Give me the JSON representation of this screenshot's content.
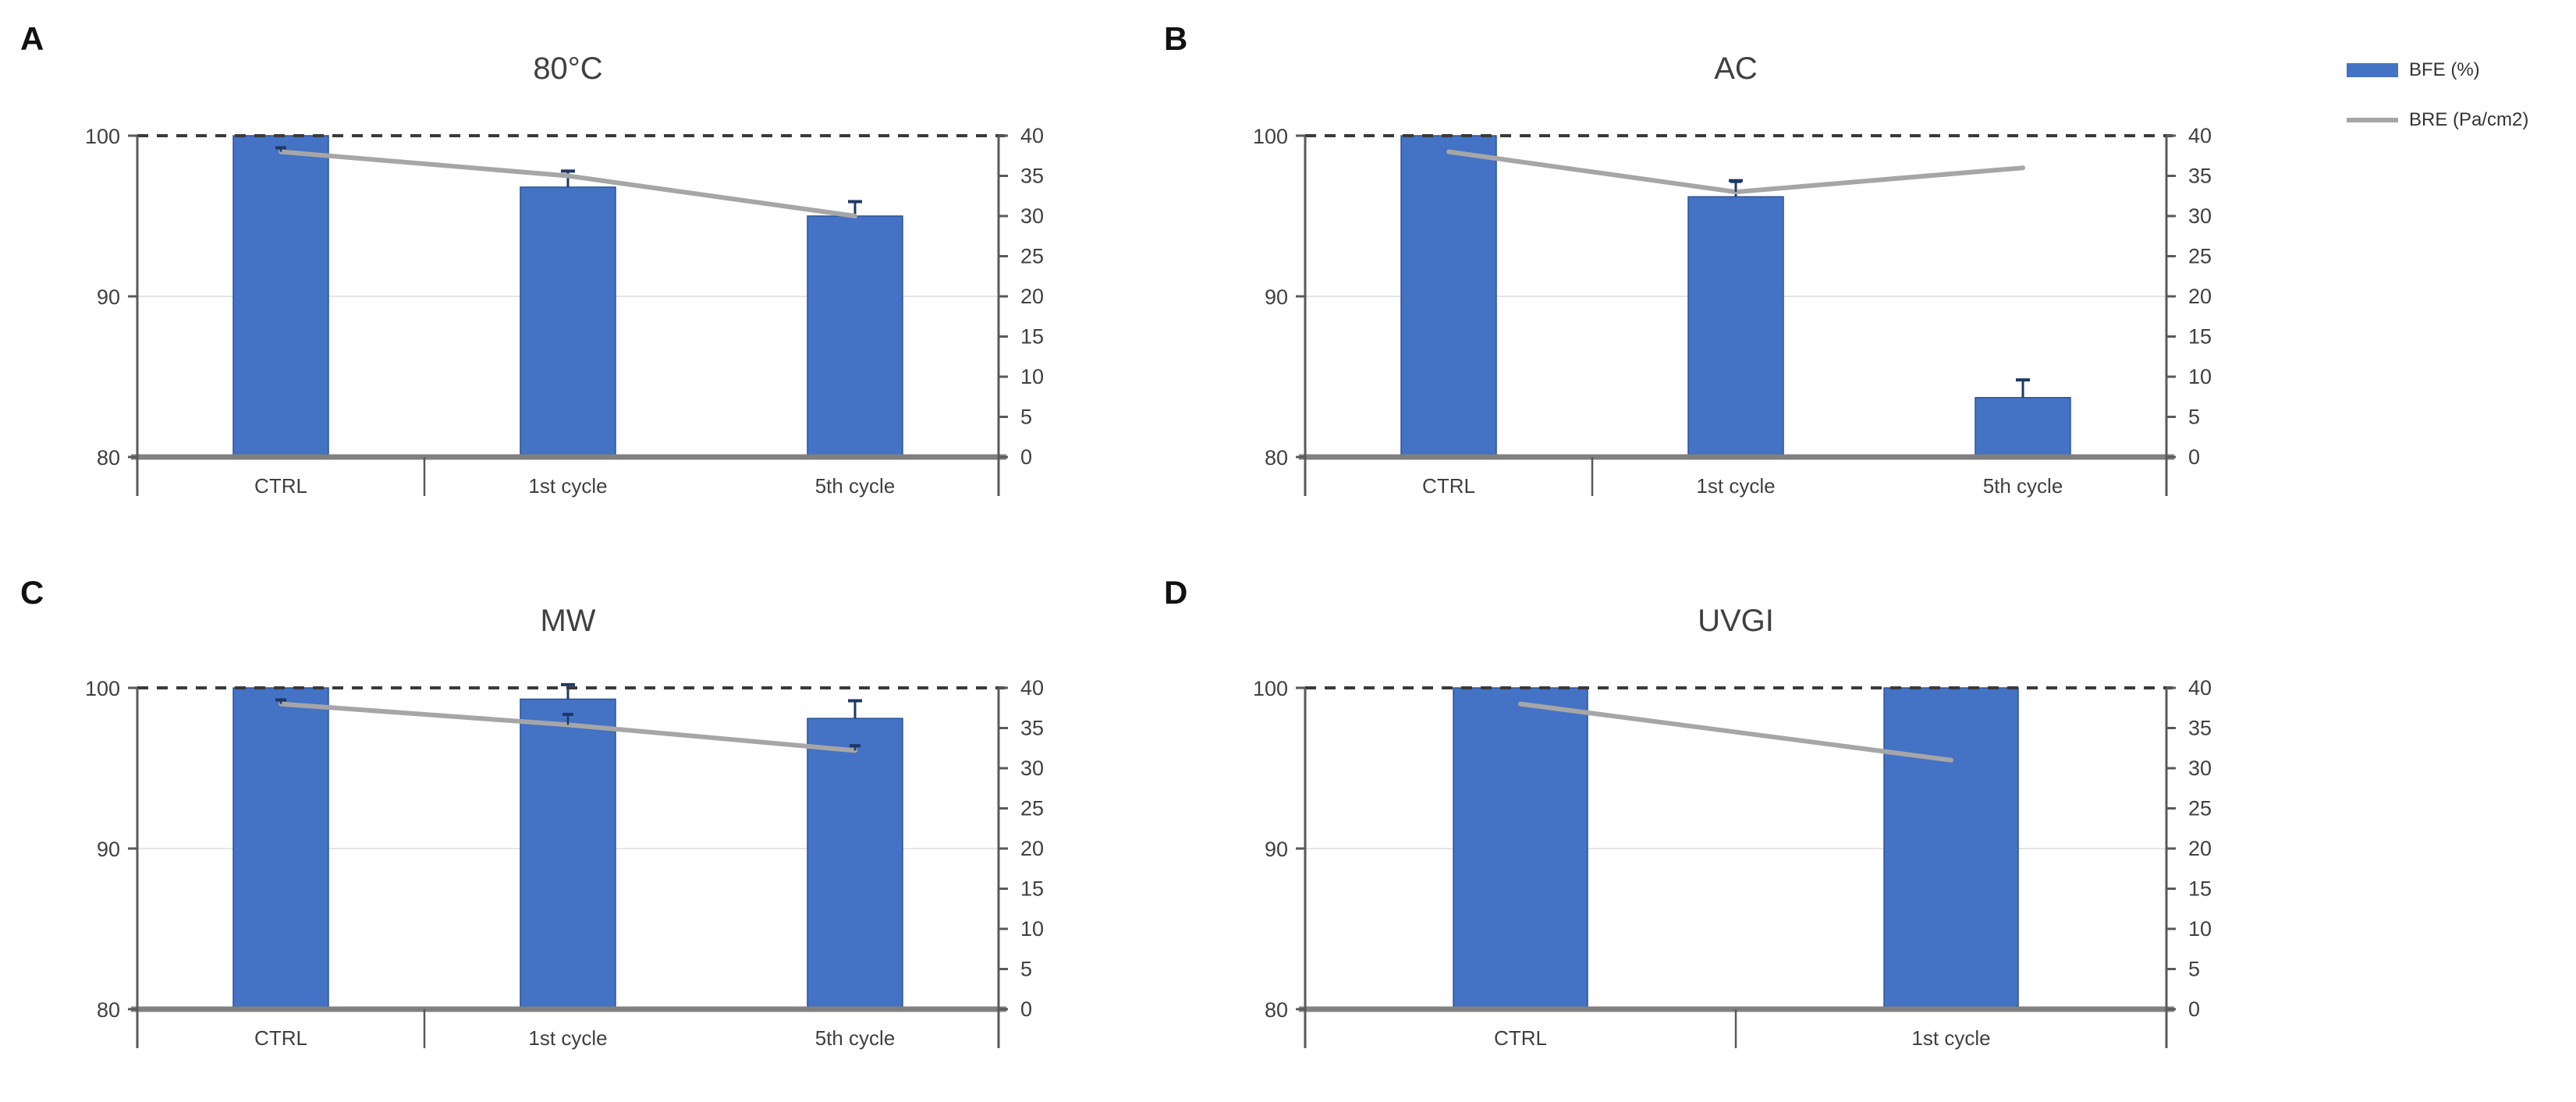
{
  "figure": {
    "colors": {
      "bar_fill": "#4472C4",
      "bar_stroke": "#2B5597",
      "line": "#A6A6A6",
      "error_bar": "#1F3864",
      "dashed_cap_line": "#3A3A3A",
      "baseline": "#808080",
      "gridline": "#E4E4E4",
      "axis": "#595959",
      "label_text": "#404040"
    },
    "legend": {
      "items": [
        {
          "swatch": "bar",
          "label": "BFE (%)"
        },
        {
          "swatch": "line",
          "label": "BRE (Pa/cm2)"
        }
      ]
    }
  },
  "chart_data": [
    {
      "type": "bar+line",
      "panel_label": "A",
      "title": "80°C",
      "categories": [
        "CTRL",
        "1st cycle",
        "5th cycle"
      ],
      "series": [
        {
          "name": "BFE (%)",
          "kind": "bar",
          "axis": "left",
          "values": [
            100,
            96.8,
            95.0
          ],
          "errors": [
            0,
            1.0,
            0.9
          ]
        },
        {
          "name": "BRE (Pa/cm2)",
          "kind": "line",
          "axis": "right",
          "values": [
            38,
            35,
            30
          ],
          "errors": [
            0.5,
            0,
            0
          ]
        }
      ],
      "left_axis": {
        "label_values": [
          100,
          90,
          80
        ],
        "ylim": [
          80,
          100
        ]
      },
      "right_axis": {
        "label_values": [
          40,
          35,
          30,
          25,
          20,
          15,
          10,
          5,
          0
        ],
        "ylim": [
          0,
          40
        ]
      },
      "reference_line_left": 100,
      "gridline_left": 90
    },
    {
      "type": "bar+line",
      "panel_label": "B",
      "title": "AC",
      "categories": [
        "CTRL",
        "1st cycle",
        "5th cycle"
      ],
      "series": [
        {
          "name": "BFE (%)",
          "kind": "bar",
          "axis": "left",
          "values": [
            100,
            96.2,
            83.7
          ],
          "errors": [
            0,
            1.0,
            1.1
          ]
        },
        {
          "name": "BRE (Pa/cm2)",
          "kind": "line",
          "axis": "right",
          "values": [
            38,
            33,
            36
          ],
          "errors": [
            0,
            1.3,
            0
          ]
        }
      ],
      "left_axis": {
        "label_values": [
          100,
          90,
          80
        ],
        "ylim": [
          80,
          100
        ]
      },
      "right_axis": {
        "label_values": [
          40,
          35,
          30,
          25,
          20,
          15,
          10,
          5,
          0
        ],
        "ylim": [
          0,
          40
        ]
      },
      "reference_line_left": 100,
      "gridline_left": 90
    },
    {
      "type": "bar+line",
      "panel_label": "C",
      "title": "MW",
      "categories": [
        "CTRL",
        "1st cycle",
        "5th cycle"
      ],
      "series": [
        {
          "name": "BFE (%)",
          "kind": "bar",
          "axis": "left",
          "values": [
            100,
            99.3,
            98.1
          ],
          "errors": [
            0,
            0.9,
            1.1
          ]
        },
        {
          "name": "BRE (Pa/cm2)",
          "kind": "line",
          "axis": "right",
          "values": [
            38,
            35.4,
            32.2
          ],
          "errors": [
            0.5,
            1.3,
            0.6
          ]
        }
      ],
      "left_axis": {
        "label_values": [
          100,
          90,
          80
        ],
        "ylim": [
          80,
          100
        ]
      },
      "right_axis": {
        "label_values": [
          40,
          35,
          30,
          25,
          20,
          15,
          10,
          5,
          0
        ],
        "ylim": [
          0,
          40
        ]
      },
      "reference_line_left": 100,
      "gridline_left": 90
    },
    {
      "type": "bar+line",
      "panel_label": "D",
      "title": "UVGI",
      "categories": [
        "CTRL",
        "1st cycle"
      ],
      "series": [
        {
          "name": "BFE (%)",
          "kind": "bar",
          "axis": "left",
          "values": [
            100,
            100
          ],
          "errors": [
            0,
            0
          ]
        },
        {
          "name": "BRE (Pa/cm2)",
          "kind": "line",
          "axis": "right",
          "values": [
            38,
            31
          ],
          "errors": [
            0,
            0
          ]
        }
      ],
      "left_axis": {
        "label_values": [
          100,
          90,
          80
        ],
        "ylim": [
          80,
          100
        ]
      },
      "right_axis": {
        "label_values": [
          40,
          35,
          30,
          25,
          20,
          15,
          10,
          5,
          0
        ],
        "ylim": [
          0,
          40
        ]
      },
      "reference_line_left": 100,
      "gridline_left": 90
    }
  ]
}
